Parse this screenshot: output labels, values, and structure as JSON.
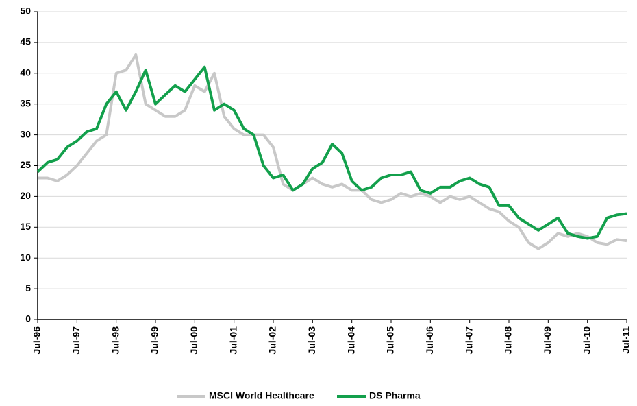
{
  "chart_data": {
    "type": "line",
    "categories": [
      "Jul-96",
      null,
      null,
      null,
      "Jul-97",
      null,
      null,
      null,
      "Jul-98",
      null,
      null,
      null,
      "Jul-99",
      null,
      null,
      null,
      "Jul-00",
      null,
      null,
      null,
      "Jul-01",
      null,
      null,
      null,
      "Jul-02",
      null,
      null,
      null,
      "Jul-03",
      null,
      null,
      null,
      "Jul-04",
      null,
      null,
      null,
      "Jul-05",
      null,
      null,
      null,
      "Jul-06",
      null,
      null,
      null,
      "Jul-07",
      null,
      null,
      null,
      "Jul-08",
      null,
      null,
      null,
      "Jul-09",
      null,
      null,
      null,
      "Jul-10",
      null,
      null,
      null,
      "Jul-11"
    ],
    "series": [
      {
        "name": "MSCI World Healthcare",
        "color": "#c8c8c8",
        "values": [
          23,
          23,
          22.5,
          23.5,
          25,
          27,
          29,
          30,
          40,
          40.5,
          43,
          35,
          34,
          33,
          33,
          34,
          38,
          37,
          40,
          33,
          31,
          30,
          30,
          30,
          28,
          22,
          21,
          22,
          23,
          22,
          21.5,
          22,
          21,
          21,
          19.5,
          19,
          19.5,
          20.5,
          20,
          20.5,
          20,
          19,
          20,
          19.5,
          20,
          19,
          18,
          17.5,
          16,
          15,
          12.5,
          11.5,
          12.5,
          14,
          13.5,
          14,
          13.5,
          12.5,
          12.2,
          13,
          12.8
        ]
      },
      {
        "name": "DS Pharma",
        "color": "#13a04c",
        "values": [
          24,
          25.5,
          26,
          28,
          29,
          30.5,
          31,
          35,
          37,
          34,
          37,
          40.5,
          35,
          36.5,
          38,
          37,
          39,
          41,
          34,
          35,
          34,
          31,
          30,
          25,
          23,
          23.5,
          21,
          22,
          24.5,
          25.5,
          28.5,
          27,
          22.5,
          21,
          21.5,
          23,
          23.5,
          23.5,
          24,
          21,
          20.5,
          21.5,
          21.5,
          22.5,
          23,
          22,
          21.5,
          18.5,
          18.5,
          16.5,
          15.5,
          14.5,
          15.5,
          16.5,
          14,
          13.5,
          13.2,
          13.5,
          16.5,
          17,
          17.2
        ]
      }
    ],
    "ylim": [
      0,
      50
    ],
    "yticks": [
      0,
      5,
      10,
      15,
      20,
      25,
      30,
      35,
      40,
      45,
      50
    ],
    "grid": true
  }
}
